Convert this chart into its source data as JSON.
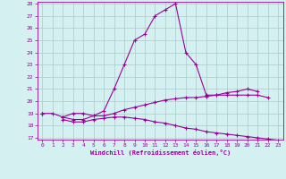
{
  "x": [
    0,
    1,
    2,
    3,
    4,
    5,
    6,
    7,
    8,
    9,
    10,
    11,
    12,
    13,
    14,
    15,
    16,
    17,
    18,
    19,
    20,
    21,
    22,
    23
  ],
  "line1": [
    19.0,
    19.0,
    18.7,
    19.0,
    19.0,
    18.8,
    19.2,
    21.0,
    23.0,
    25.0,
    25.5,
    27.0,
    27.5,
    28.0,
    24.0,
    23.0,
    20.5,
    20.5,
    20.7,
    20.8,
    21.0,
    20.8,
    null,
    null
  ],
  "line2": [
    19.0,
    null,
    18.7,
    18.5,
    18.5,
    18.8,
    18.8,
    19.0,
    19.3,
    19.5,
    19.7,
    19.9,
    20.1,
    20.2,
    20.3,
    20.3,
    20.4,
    20.5,
    20.5,
    20.5,
    20.5,
    20.5,
    20.3,
    null
  ],
  "line3": [
    19.0,
    null,
    18.5,
    18.3,
    18.3,
    18.5,
    18.6,
    18.7,
    18.7,
    18.6,
    18.5,
    18.3,
    18.2,
    18.0,
    17.8,
    17.7,
    17.5,
    17.4,
    17.3,
    17.2,
    17.1,
    17.0,
    16.9,
    16.8
  ],
  "bg_color": "#d4f0f0",
  "grid_color": "#aacccc",
  "line_color": "#990099",
  "xlabel": "Windchill (Refroidissement éolien,°C)",
  "ylim": [
    17,
    28
  ],
  "xlim": [
    -0.5,
    23.5
  ],
  "yticks": [
    17,
    18,
    19,
    20,
    21,
    22,
    23,
    24,
    25,
    26,
    27,
    28
  ],
  "xticks": [
    0,
    1,
    2,
    3,
    4,
    5,
    6,
    7,
    8,
    9,
    10,
    11,
    12,
    13,
    14,
    15,
    16,
    17,
    18,
    19,
    20,
    21,
    22,
    23
  ]
}
